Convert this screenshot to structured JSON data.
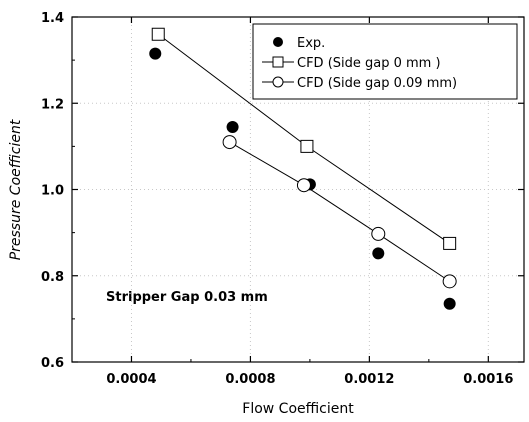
{
  "chart_data": {
    "type": "scatter",
    "xlabel": "Flow Coefficient",
    "ylabel": "Pressure Coefficient",
    "xlim": [
      0.0002,
      0.00172
    ],
    "ylim": [
      0.6,
      1.4
    ],
    "x_ticks": [
      0.0004,
      0.0008,
      0.0012,
      0.0016
    ],
    "x_tick_labels": [
      "0.0004",
      "0.0008",
      "0.0012",
      "0.0016"
    ],
    "y_ticks": [
      0.6,
      0.8,
      1.0,
      1.2,
      1.4
    ],
    "y_tick_labels": [
      "0.6",
      "0.8",
      "1.0",
      "1.2",
      "1.4"
    ],
    "grid": true,
    "legend_position": "top-right",
    "annotation": "Stripper Gap 0.03 mm",
    "series": [
      {
        "name": "Exp.",
        "marker": "filled-circle",
        "line": false,
        "x": [
          0.00048,
          0.00074,
          0.001,
          0.00123,
          0.00147
        ],
        "y": [
          1.315,
          1.145,
          1.012,
          0.852,
          0.735
        ]
      },
      {
        "name": "CFD (Side gap 0 mm )",
        "marker": "open-square",
        "line": true,
        "x": [
          0.00049,
          0.00099,
          0.00147
        ],
        "y": [
          1.36,
          1.1,
          0.875
        ]
      },
      {
        "name": "CFD (Side gap 0.09 mm)",
        "marker": "open-circle",
        "line": true,
        "x": [
          0.00073,
          0.00098,
          0.00123,
          0.00147
        ],
        "y": [
          1.11,
          1.01,
          0.897,
          0.787
        ]
      }
    ]
  }
}
